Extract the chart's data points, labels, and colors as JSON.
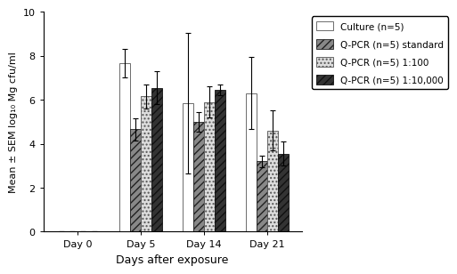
{
  "days": [
    "Day 0",
    "Day 5",
    "Day 14",
    "Day 21"
  ],
  "series": {
    "Culture (n=5)": {
      "values": [
        0,
        7.65,
        5.85,
        6.3
      ],
      "errors": [
        0,
        0.65,
        3.2,
        1.65
      ],
      "hatch": "",
      "facecolor": "#ffffff",
      "edgecolor": "#555555"
    },
    "Q-PCR (n=5) standard": {
      "values": [
        0,
        4.65,
        5.0,
        3.2
      ],
      "errors": [
        0,
        0.5,
        0.45,
        0.25
      ],
      "hatch": "////",
      "facecolor": "#888888",
      "edgecolor": "#222222"
    },
    "Q-PCR (n=5) 1:100": {
      "values": [
        0,
        6.15,
        5.9,
        4.6
      ],
      "errors": [
        0,
        0.55,
        0.7,
        0.9
      ],
      "hatch": "....",
      "facecolor": "#dddddd",
      "edgecolor": "#555555"
    },
    "Q-PCR (n=5) 1:10,000": {
      "values": [
        0,
        6.55,
        6.45,
        3.55
      ],
      "errors": [
        0,
        0.75,
        0.25,
        0.55
      ],
      "hatch": "////",
      "facecolor": "#333333",
      "edgecolor": "#111111"
    }
  },
  "ylabel": "Mean ± SEM log₁₀ Mg cfu/ml",
  "xlabel": "Days after exposure",
  "ylim": [
    0,
    10
  ],
  "yticks": [
    0,
    2,
    4,
    6,
    8,
    10
  ],
  "bar_width": 0.17,
  "legend_order": [
    "Culture (n=5)",
    "Q-PCR (n=5) standard",
    "Q-PCR (n=5) 1:100",
    "Q-PCR (n=5) 1:10,000"
  ]
}
